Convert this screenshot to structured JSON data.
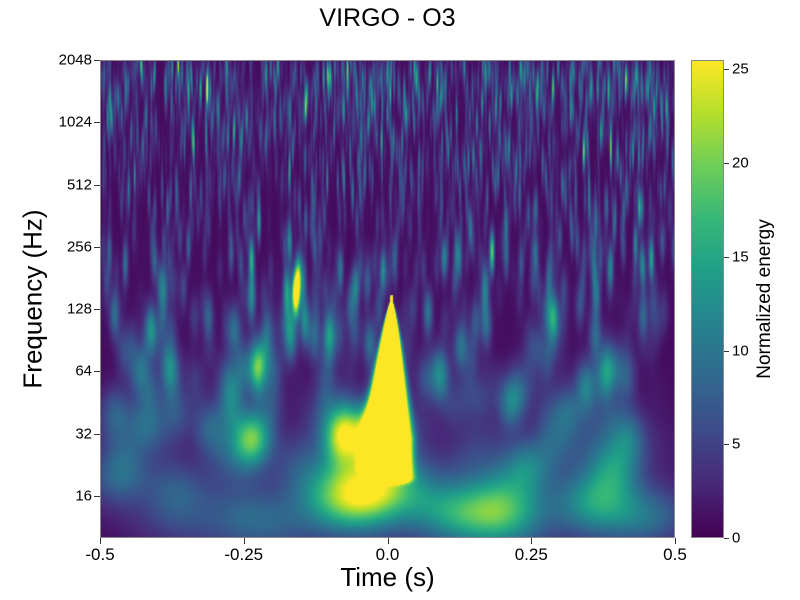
{
  "chart_data": {
    "type": "heatmap",
    "title": "VIRGO - O3",
    "xlabel": "Time (s)",
    "ylabel": "Frequency (Hz)",
    "xlim": [
      -0.5,
      0.5
    ],
    "ylim": [
      10,
      2048
    ],
    "yscale": "log2",
    "xticks": [
      -0.5,
      -0.25,
      0.0,
      0.25,
      0.5
    ],
    "xtick_labels": [
      "-0.5",
      "-0.25",
      "0.0",
      "0.25",
      "0.5"
    ],
    "yticks": [
      16,
      32,
      64,
      128,
      256,
      512,
      1024,
      2048
    ],
    "ytick_labels": [
      "16",
      "32",
      "64",
      "128",
      "256",
      "512",
      "1024",
      "2048"
    ],
    "colorbar": {
      "label": "Normalized energy",
      "colormap": "viridis",
      "clim": [
        0,
        25.5
      ],
      "ticks": [
        0,
        5,
        10,
        15,
        20,
        25
      ],
      "tick_labels": [
        "0",
        "5",
        "10",
        "15",
        "20",
        "25"
      ]
    },
    "event": {
      "time_s": 0.0,
      "freq_range_hz": [
        18,
        140
      ],
      "peak_energy": 25.5
    },
    "background_energy_typical": [
      0,
      5
    ]
  }
}
